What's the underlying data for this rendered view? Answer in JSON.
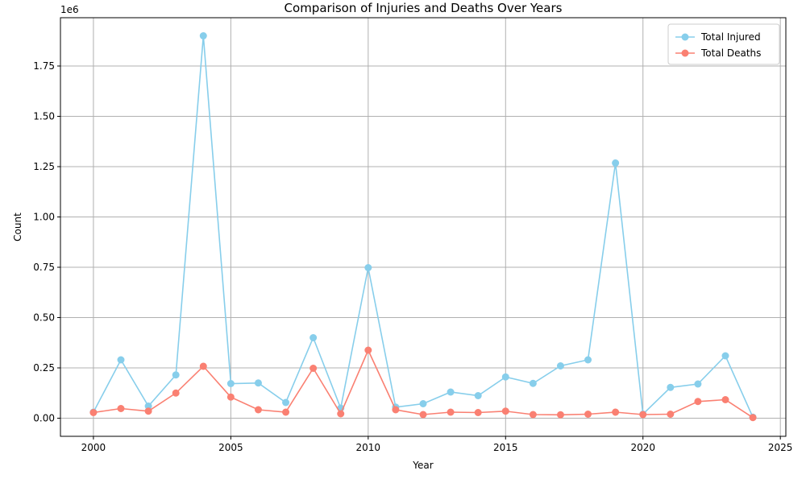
{
  "chart_data": {
    "type": "line",
    "title": "Comparison of Injuries and Deaths Over Years",
    "xlabel": "Year",
    "ylabel": "Count",
    "y_offset_label": "1e6",
    "x": [
      2000,
      2001,
      2002,
      2003,
      2004,
      2005,
      2006,
      2007,
      2008,
      2009,
      2010,
      2011,
      2012,
      2013,
      2014,
      2015,
      2016,
      2017,
      2018,
      2019,
      2020,
      2021,
      2022,
      2023,
      2024
    ],
    "series": [
      {
        "name": "Total Injured",
        "color": "#87ceeb",
        "values": [
          30000,
          290000,
          60000,
          215000,
          1900000,
          172000,
          175000,
          78000,
          400000,
          50000,
          748000,
          55000,
          72000,
          130000,
          112000,
          205000,
          173000,
          260000,
          290000,
          1268000,
          20000,
          153000,
          170000,
          310000,
          5000
        ]
      },
      {
        "name": "Total Deaths",
        "color": "#fa8072",
        "values": [
          28000,
          48000,
          35000,
          125000,
          258000,
          105000,
          42000,
          30000,
          248000,
          22000,
          338000,
          42000,
          18000,
          30000,
          28000,
          35000,
          18000,
          17000,
          20000,
          30000,
          18000,
          20000,
          83000,
          92000,
          3000
        ]
      }
    ],
    "xlim": [
      1998.8,
      2025.2
    ],
    "ylim": [
      -90000,
      1990000
    ],
    "x_ticks": [
      2000,
      2005,
      2010,
      2015,
      2020,
      2025
    ],
    "y_ticks": [
      0,
      250000,
      500000,
      750000,
      1000000,
      1250000,
      1500000,
      1750000
    ],
    "y_tick_labels": [
      "0.00",
      "0.25",
      "0.50",
      "0.75",
      "1.00",
      "1.25",
      "1.50",
      "1.75"
    ],
    "grid": true,
    "legend_position": "top-right"
  }
}
